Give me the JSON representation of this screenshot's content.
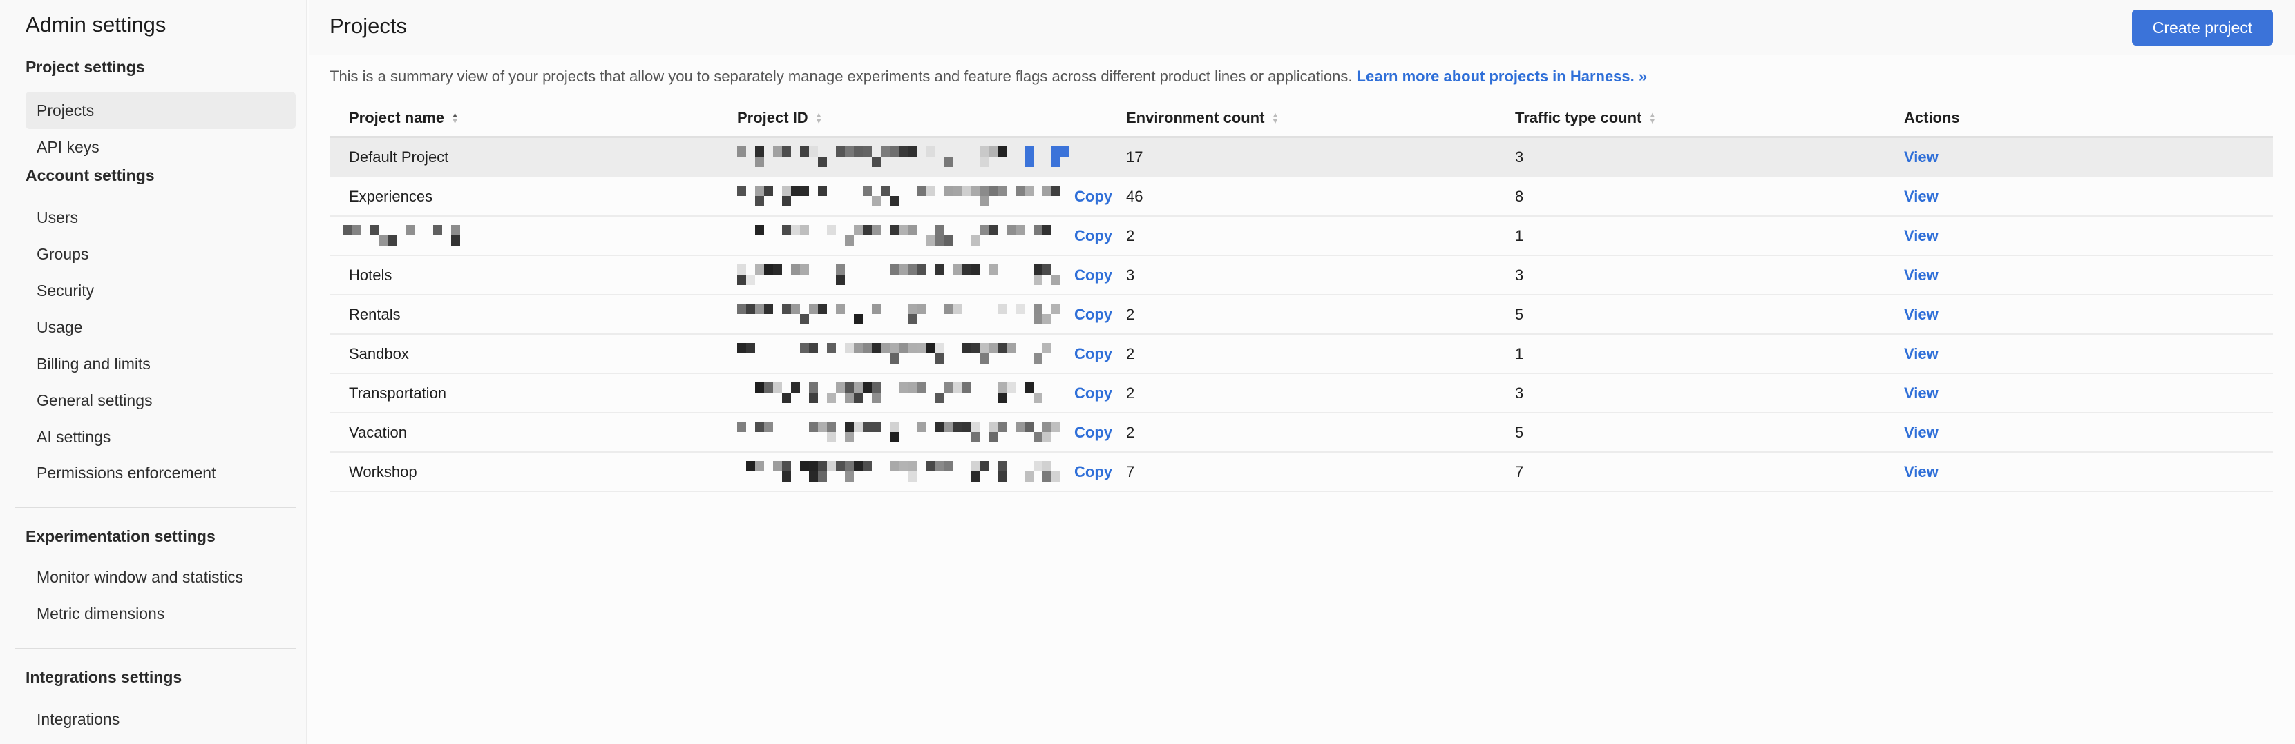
{
  "sidebar": {
    "title": "Admin settings",
    "sections": [
      {
        "label": "Project settings",
        "items": [
          "Projects",
          "API keys"
        ]
      },
      {
        "label": "Account settings",
        "items": [
          "Users",
          "Groups",
          "Security",
          "Usage",
          "Billing and limits",
          "General settings",
          "AI settings",
          "Permissions enforcement"
        ]
      },
      {
        "label": "Experimentation settings",
        "items": [
          "Monitor window and statistics",
          "Metric dimensions"
        ]
      },
      {
        "label": "Integrations settings",
        "items": [
          "Integrations"
        ]
      }
    ],
    "active_item": "Projects"
  },
  "header": {
    "title": "Projects",
    "create_button": "Create project"
  },
  "description": {
    "text": "This is a summary view of your projects that allow you to separately manage experiments and feature flags across different product lines or applications. ",
    "link": "Learn more about projects in Harness. »"
  },
  "table": {
    "columns": [
      "Project name",
      "Project ID",
      "Environment count",
      "Traffic type count",
      "Actions"
    ],
    "sorted_column": "Project name",
    "sort_direction": "ascending",
    "rows": [
      {
        "name": "Default Project",
        "env": "17",
        "traffic": "3",
        "action": "View",
        "copy": ""
      },
      {
        "name": "Experiences",
        "env": "46",
        "traffic": "8",
        "action": "View",
        "copy": "Copy"
      },
      {
        "name": "",
        "env": "2",
        "traffic": "1",
        "action": "View",
        "copy": "Copy"
      },
      {
        "name": "Hotels",
        "env": "3",
        "traffic": "3",
        "action": "View",
        "copy": "Copy"
      },
      {
        "name": "Rentals",
        "env": "2",
        "traffic": "5",
        "action": "View",
        "copy": "Copy"
      },
      {
        "name": "Sandbox",
        "env": "2",
        "traffic": "1",
        "action": "View",
        "copy": "Copy"
      },
      {
        "name": "Transportation",
        "env": "2",
        "traffic": "3",
        "action": "View",
        "copy": "Copy"
      },
      {
        "name": "Vacation",
        "env": "2",
        "traffic": "5",
        "action": "View",
        "copy": "Copy"
      },
      {
        "name": "Workshop",
        "env": "7",
        "traffic": "7",
        "action": "View",
        "copy": "Copy"
      }
    ]
  },
  "colors": {
    "accent": "#3b73d9",
    "link": "#2f6fd8",
    "highlight_row": "#ececec"
  }
}
